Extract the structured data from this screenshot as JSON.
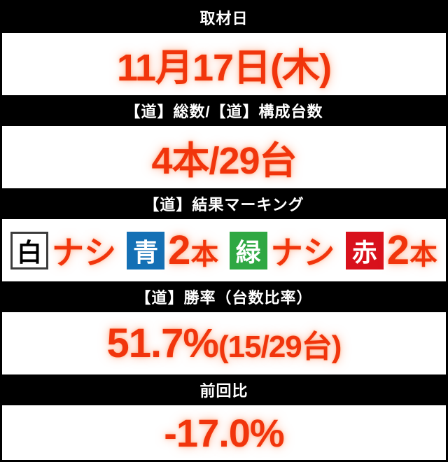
{
  "colors": {
    "accent_red": "#f1350c",
    "header_bg": "#000000",
    "header_text": "#ffffff",
    "chip_blue": "#1470b5",
    "chip_green": "#2fa843",
    "chip_red": "#d8111c",
    "chip_white_bg": "#ffffff",
    "chip_white_border": "#3c3c3c"
  },
  "sections": {
    "date": {
      "header": "取材日",
      "value": "11月17日(木)"
    },
    "total": {
      "header": "【道】総数/【道】構成台数",
      "value": "4本/29台"
    },
    "marking": {
      "header": "【道】結果マーキング",
      "items": [
        {
          "chip": "白",
          "value_main": "ナシ",
          "value_unit": ""
        },
        {
          "chip": "青",
          "value_main": "2",
          "value_unit": "本"
        },
        {
          "chip": "緑",
          "value_main": "ナシ",
          "value_unit": ""
        },
        {
          "chip": "赤",
          "value_main": "2",
          "value_unit": "本"
        }
      ]
    },
    "win_rate": {
      "header": "【道】勝率（台数比率）",
      "value_main": "51.7%",
      "value_sub": "(15/29台)"
    },
    "prev_diff": {
      "header": "前回比",
      "value": "-17.0%"
    }
  }
}
